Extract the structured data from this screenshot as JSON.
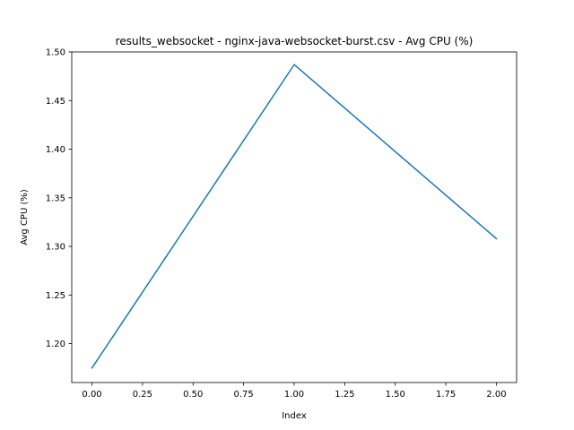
{
  "chart_data": {
    "type": "line",
    "title": "results_websocket - nginx-java-websocket-burst.csv - Avg CPU (%)",
    "xlabel": "Index",
    "ylabel": "Avg CPU (%)",
    "x": [
      0,
      1,
      2
    ],
    "series": [
      {
        "values": [
          1.175,
          1.487,
          1.308
        ],
        "color": "#1f77b4"
      }
    ],
    "xlim": [
      -0.1,
      2.1
    ],
    "ylim": [
      1.16,
      1.5
    ],
    "xticks": [
      0.0,
      0.25,
      0.5,
      0.75,
      1.0,
      1.25,
      1.5,
      1.75,
      2.0
    ],
    "xtick_labels": [
      "0.00",
      "0.25",
      "0.50",
      "0.75",
      "1.00",
      "1.25",
      "1.50",
      "1.75",
      "2.00"
    ],
    "yticks": [
      1.2,
      1.25,
      1.3,
      1.35,
      1.4,
      1.45,
      1.5
    ],
    "ytick_labels": [
      "1.20",
      "1.25",
      "1.30",
      "1.35",
      "1.40",
      "1.45",
      "1.50"
    ],
    "grid": false,
    "legend": "none"
  }
}
